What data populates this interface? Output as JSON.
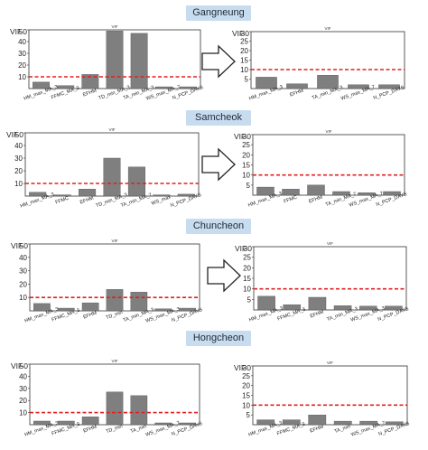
{
  "colors": {
    "bar": "#7f7f7f",
    "threshold": "#e02020",
    "label_bg": "#c7dcef"
  },
  "icons": {
    "transition": "right-arrow-icon"
  },
  "regions": [
    {
      "name": "Gangneung"
    },
    {
      "name": "Samcheok"
    },
    {
      "name": "Chuncheon"
    },
    {
      "name": "Hongcheon"
    }
  ],
  "chart_data": [
    {
      "type": "bar",
      "title": "VIF",
      "ylabel": "VIF",
      "ylim": [
        0,
        50
      ],
      "yticks": [
        10,
        20,
        30,
        40,
        50
      ],
      "threshold": 10,
      "categories": [
        "HM_max_MA_3",
        "FFMC_MA_3",
        "EFHM",
        "TD_min_MA_3",
        "TA_min_MA_3",
        "WS_max_MA_7",
        "N_PCP_DAYS"
      ],
      "values": [
        5.5,
        2.5,
        12,
        49,
        47,
        1.5,
        1.5
      ]
    },
    {
      "type": "bar",
      "title": "VIF",
      "ylabel": "VIF",
      "ylim": [
        0,
        30
      ],
      "yticks": [
        5,
        10,
        15,
        20,
        25,
        30
      ],
      "threshold": 10,
      "categories": [
        "HM_max_MA_3",
        "EFHM",
        "TA_min_MA_3",
        "WS_max_MA_7",
        "N_PCP_DAYS"
      ],
      "values": [
        6,
        2.5,
        7,
        2,
        2
      ]
    },
    {
      "type": "bar",
      "title": "VIF",
      "ylabel": "VIF",
      "ylim": [
        0,
        50
      ],
      "yticks": [
        10,
        20,
        30,
        40,
        50
      ],
      "threshold": 10,
      "categories": [
        "HM_max_MA_3",
        "FFMC",
        "EFHM",
        "TD_min_MA_3",
        "TA_min_MA_7",
        "WS_max",
        "N_PCP_DAYS"
      ],
      "values": [
        3,
        1,
        5.5,
        30,
        23,
        1,
        1.5
      ]
    },
    {
      "type": "bar",
      "title": "VIF",
      "ylabel": "VIF",
      "ylim": [
        0,
        30
      ],
      "yticks": [
        5,
        10,
        15,
        20,
        25,
        30
      ],
      "threshold": 10,
      "categories": [
        "HM_max_MA_3",
        "FFMC",
        "EFHM",
        "TA_min_MA_7",
        "WS_max_MA_7",
        "N_PCP_DAYS"
      ],
      "values": [
        4,
        3,
        5,
        1.8,
        1.2,
        1.8
      ]
    },
    {
      "type": "bar",
      "title": "VIF",
      "ylabel": "VIF",
      "ylim": [
        0,
        50
      ],
      "yticks": [
        10,
        20,
        30,
        40,
        50
      ],
      "threshold": 10,
      "categories": [
        "HM_max_MA_3",
        "FFMC_MA_3",
        "EFHM",
        "TD_min",
        "TA_min_MA_3",
        "WS_max_MA_3",
        "N_PCP_DAYS"
      ],
      "values": [
        5.5,
        2,
        6,
        16,
        14,
        1.5,
        2
      ]
    },
    {
      "type": "bar",
      "title": "VIF",
      "ylabel": "VIF",
      "ylim": [
        0,
        30
      ],
      "yticks": [
        5,
        10,
        15,
        20,
        25,
        30
      ],
      "threshold": 10,
      "categories": [
        "HM_max_MA_3",
        "FFMC_MA_3",
        "EFHM",
        "TA_min_MA_3",
        "WS_max_MA_3",
        "N_PCP_DAYS"
      ],
      "values": [
        6.5,
        2.5,
        6,
        2,
        1.8,
        1.8
      ]
    },
    {
      "type": "bar",
      "title": "VIF",
      "ylabel": "VIF",
      "ylim": [
        0,
        50
      ],
      "yticks": [
        10,
        20,
        30,
        40,
        50
      ],
      "threshold": 10,
      "categories": [
        "HM_max_MA_3",
        "FFMC_MA_3",
        "EFHM",
        "TD_min",
        "TA_min",
        "WS_max_MA_7",
        "N_PCP_DAYS"
      ],
      "values": [
        3,
        3,
        6.5,
        27,
        24,
        1.5,
        1.5
      ]
    },
    {
      "type": "bar",
      "title": "VIF",
      "ylabel": "VIF",
      "ylim": [
        0,
        30
      ],
      "yticks": [
        5,
        10,
        15,
        20,
        25,
        30
      ],
      "threshold": 10,
      "categories": [
        "HM_max_MA_3",
        "FFMC_MA_3",
        "EFHM",
        "TA_min",
        "WS_max_MA_7",
        "N_PCP_DAYS"
      ],
      "values": [
        2.5,
        2.5,
        5,
        1.8,
        1.8,
        1.5
      ]
    }
  ]
}
